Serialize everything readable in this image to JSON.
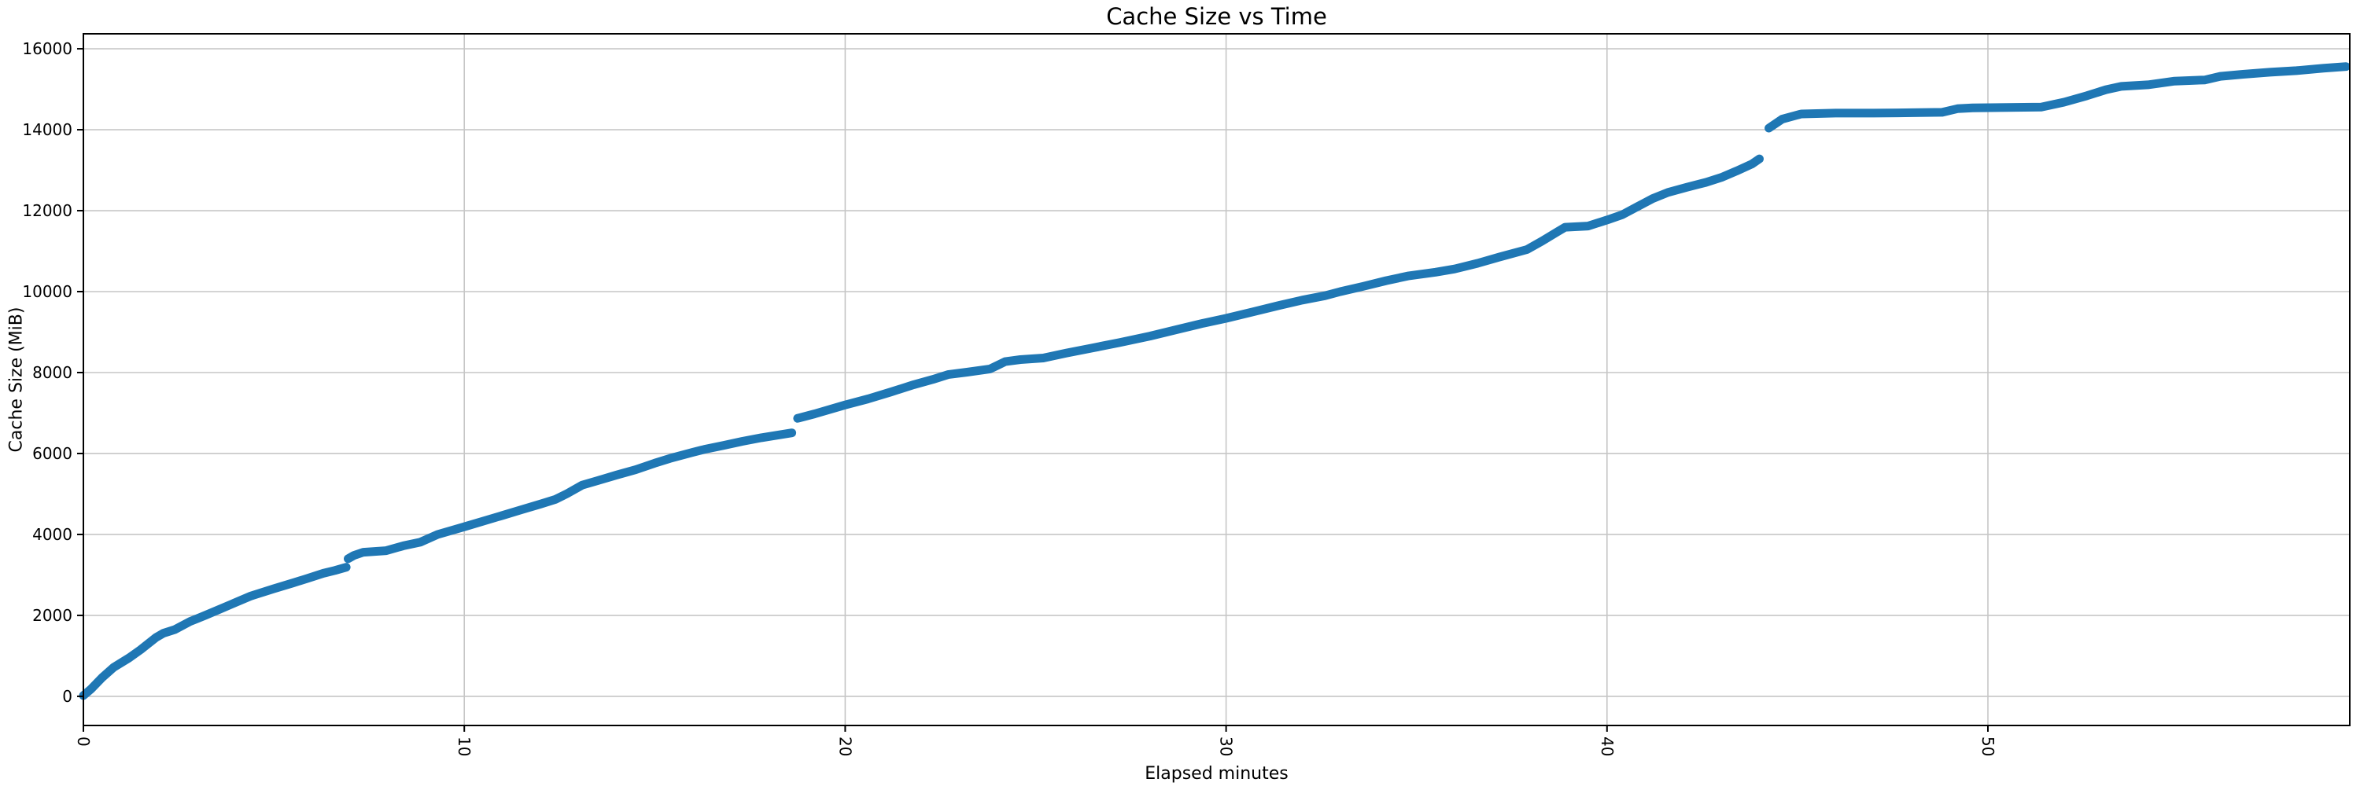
{
  "figure": {
    "background": "#ffffff"
  },
  "chart_data": {
    "type": "line",
    "title": "Cache Size vs Time",
    "xlabel": "Elapsed minutes",
    "ylabel": "Cache Size (MiB)",
    "xlim": [
      0,
      59.5
    ],
    "ylim": [
      -720,
      16370
    ],
    "x_ticks": [
      0,
      10,
      20,
      30,
      40,
      50
    ],
    "y_ticks": [
      0,
      2000,
      4000,
      6000,
      8000,
      10000,
      12000,
      14000,
      16000
    ],
    "x_tick_rotation_deg": 90,
    "grid": true,
    "legend": "none",
    "line_color": "#1f77b4",
    "line_width": 11,
    "grid_color": "#c6c6c6",
    "spine_color": "#000000",
    "tick_color": "#000000",
    "series": [
      {
        "name": "cache-size-mib",
        "segments": [
          [
            [
              0,
              20
            ],
            [
              0.2,
              180
            ],
            [
              0.5,
              470
            ],
            [
              0.8,
              720
            ],
            [
              1.2,
              950
            ],
            [
              1.5,
              1150
            ],
            [
              1.9,
              1450
            ],
            [
              2.1,
              1560
            ],
            [
              2.4,
              1650
            ],
            [
              2.8,
              1850
            ],
            [
              3.2,
              2000
            ],
            [
              3.6,
              2160
            ],
            [
              3.9,
              2280
            ],
            [
              4.4,
              2480
            ],
            [
              5.0,
              2660
            ],
            [
              5.5,
              2800
            ],
            [
              5.9,
              2920
            ],
            [
              6.3,
              3040
            ],
            [
              6.6,
              3110
            ],
            [
              6.9,
              3190
            ]
          ],
          [
            [
              6.95,
              3400
            ],
            [
              7.1,
              3480
            ],
            [
              7.35,
              3560
            ],
            [
              7.95,
              3600
            ],
            [
              8.4,
              3720
            ],
            [
              8.85,
              3810
            ],
            [
              9.3,
              4000
            ],
            [
              10,
              4190
            ],
            [
              10.5,
              4330
            ],
            [
              11,
              4470
            ],
            [
              11.5,
              4610
            ],
            [
              12,
              4750
            ],
            [
              12.4,
              4870
            ],
            [
              12.7,
              5010
            ],
            [
              13.1,
              5220
            ],
            [
              13.5,
              5330
            ],
            [
              14,
              5470
            ],
            [
              14.5,
              5600
            ],
            [
              15,
              5760
            ],
            [
              15.4,
              5880
            ],
            [
              16,
              6030
            ],
            [
              16.3,
              6100
            ],
            [
              16.8,
              6200
            ],
            [
              17.3,
              6300
            ],
            [
              17.8,
              6390
            ],
            [
              18.2,
              6450
            ],
            [
              18.6,
              6510
            ]
          ],
          [
            [
              18.75,
              6870
            ],
            [
              19.2,
              6980
            ],
            [
              20,
              7200
            ],
            [
              20.6,
              7350
            ],
            [
              21.2,
              7520
            ],
            [
              21.8,
              7700
            ],
            [
              22.3,
              7830
            ],
            [
              22.7,
              7950
            ],
            [
              23.2,
              8010
            ],
            [
              23.8,
              8090
            ],
            [
              24.2,
              8270
            ],
            [
              24.6,
              8320
            ],
            [
              25.2,
              8360
            ],
            [
              25.8,
              8480
            ],
            [
              26.5,
              8610
            ],
            [
              27.2,
              8740
            ],
            [
              28,
              8900
            ],
            [
              28.7,
              9060
            ],
            [
              29.4,
              9220
            ],
            [
              30,
              9340
            ],
            [
              30.7,
              9500
            ],
            [
              31.4,
              9660
            ],
            [
              32,
              9790
            ],
            [
              32.6,
              9900
            ],
            [
              33,
              10000
            ],
            [
              33.6,
              10130
            ],
            [
              34.2,
              10270
            ],
            [
              34.8,
              10390
            ],
            [
              35.5,
              10480
            ],
            [
              36,
              10560
            ],
            [
              36.6,
              10700
            ],
            [
              37.2,
              10860
            ],
            [
              37.9,
              11040
            ],
            [
              38.3,
              11250
            ],
            [
              38.7,
              11480
            ],
            [
              38.9,
              11590
            ],
            [
              39.5,
              11620
            ],
            [
              40,
              11770
            ],
            [
              40.4,
              11900
            ],
            [
              40.8,
              12100
            ],
            [
              41.2,
              12300
            ],
            [
              41.6,
              12450
            ],
            [
              42.1,
              12580
            ],
            [
              42.6,
              12700
            ],
            [
              43.0,
              12820
            ],
            [
              43.4,
              12980
            ],
            [
              43.8,
              13150
            ],
            [
              44.0,
              13280
            ]
          ],
          [
            [
              44.25,
              14040
            ],
            [
              44.6,
              14260
            ],
            [
              45.1,
              14390
            ],
            [
              46,
              14410
            ],
            [
              47,
              14410
            ],
            [
              48,
              14420
            ],
            [
              48.8,
              14430
            ],
            [
              49.2,
              14520
            ],
            [
              49.6,
              14540
            ],
            [
              50.5,
              14550
            ],
            [
              51.4,
              14560
            ],
            [
              52.0,
              14680
            ],
            [
              52.6,
              14840
            ],
            [
              53.1,
              14990
            ],
            [
              53.5,
              15070
            ],
            [
              54.2,
              15110
            ],
            [
              54.9,
              15200
            ],
            [
              55.7,
              15230
            ],
            [
              56.1,
              15320
            ],
            [
              56.7,
              15370
            ],
            [
              57.4,
              15420
            ],
            [
              58.1,
              15460
            ],
            [
              58.8,
              15520
            ],
            [
              59.4,
              15560
            ]
          ]
        ]
      }
    ]
  }
}
